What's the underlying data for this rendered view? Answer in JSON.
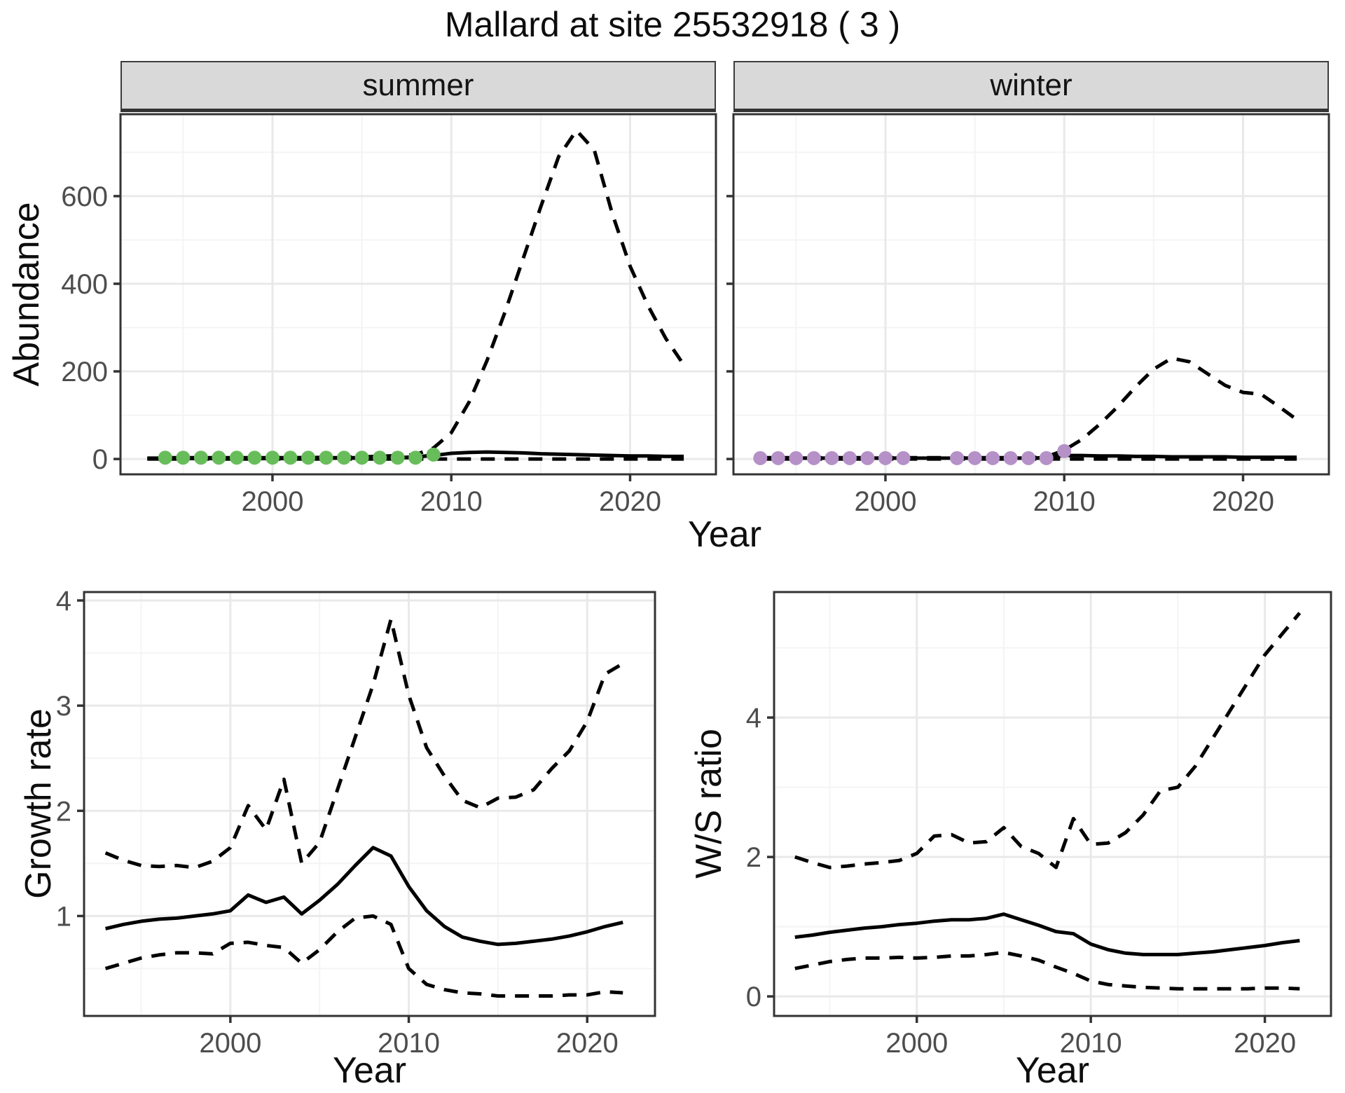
{
  "title": "Mallard at site 25532918 ( 3 )",
  "top_figure": {
    "y_label": "Abundance",
    "x_label": "Year",
    "facets": [
      "summer",
      "winter"
    ]
  },
  "bottom_left": {
    "y_label": "Growth rate",
    "x_label": "Year"
  },
  "bottom_right": {
    "y_label": "W/S ratio",
    "x_label": "Year"
  },
  "colors": {
    "summer_point": "#68bd5b",
    "winter_point": "#b591c8",
    "line": "#000000",
    "strip_bg": "#d9d9d9",
    "grid_major": "#e9e9e9",
    "grid_minor": "#f4f4f4",
    "axis_text": "#4d4d4d",
    "panel_border": "#333333"
  },
  "chart_data": [
    {
      "id": "summer",
      "type": "line",
      "facet_label": "summer",
      "x_range": [
        1991.5,
        2024.8
      ],
      "y_range": [
        -35,
        787
      ],
      "x_ticks": [
        2000,
        2010,
        2020
      ],
      "x_minor": [
        1995,
        2005,
        2015
      ],
      "y_ticks": [
        0,
        200,
        400,
        600
      ],
      "y_minor": [
        100,
        300,
        500,
        700
      ],
      "show_y_tick_labels": true,
      "series": [
        {
          "name": "lower_ci",
          "style": "dashed",
          "x": [
            1993,
            1994,
            1995,
            1996,
            1997,
            1998,
            1999,
            2000,
            2001,
            2002,
            2003,
            2004,
            2005,
            2006,
            2007,
            2008,
            2009,
            2010,
            2011,
            2012,
            2013,
            2014,
            2015,
            2016,
            2017,
            2018,
            2019,
            2020,
            2021,
            2022,
            2023
          ],
          "y": [
            0,
            0,
            0,
            0,
            0,
            0,
            0,
            0,
            0,
            0,
            0,
            0,
            0,
            0,
            0,
            0,
            0,
            0,
            0,
            0,
            0,
            0,
            0,
            0,
            0,
            0,
            0,
            0,
            0,
            0,
            0
          ]
        },
        {
          "name": "upper_ci",
          "style": "dashed",
          "x": [
            1993,
            1994,
            1995,
            1996,
            1997,
            1998,
            1999,
            2000,
            2001,
            2002,
            2003,
            2004,
            2005,
            2006,
            2007,
            2008,
            2009,
            2010,
            2011,
            2012,
            2013,
            2014,
            2015,
            2016,
            2017,
            2018,
            2019,
            2020,
            2021,
            2022,
            2023
          ],
          "y": [
            2,
            2,
            2,
            2,
            2,
            2,
            3,
            3,
            3,
            3,
            4,
            4,
            5,
            6,
            8,
            10,
            25,
            60,
            130,
            225,
            335,
            455,
            575,
            690,
            750,
            705,
            560,
            440,
            350,
            275,
            215
          ]
        },
        {
          "name": "fit",
          "style": "solid",
          "x": [
            1993,
            1994,
            1995,
            1996,
            1997,
            1998,
            1999,
            2000,
            2001,
            2002,
            2003,
            2004,
            2005,
            2006,
            2007,
            2008,
            2009,
            2010,
            2011,
            2012,
            2013,
            2014,
            2015,
            2016,
            2017,
            2018,
            2019,
            2020,
            2021,
            2022,
            2023
          ],
          "y": [
            1,
            1,
            1,
            1,
            1,
            1,
            1,
            1,
            1,
            1,
            2,
            2,
            2,
            3,
            3,
            5,
            8,
            13,
            15,
            16,
            15,
            14,
            12,
            11,
            10,
            9,
            8,
            7,
            7,
            6,
            6
          ]
        },
        {
          "name": "observed",
          "style": "points",
          "color": "#68bd5b",
          "x": [
            1994,
            1995,
            1996,
            1997,
            1998,
            1999,
            2000,
            2001,
            2002,
            2003,
            2004,
            2005,
            2006,
            2007,
            2008,
            2009
          ],
          "y": [
            3,
            3,
            3,
            3,
            3,
            3,
            3,
            3,
            3,
            3,
            3,
            3,
            3,
            3,
            3,
            10
          ]
        }
      ]
    },
    {
      "id": "winter",
      "type": "line",
      "facet_label": "winter",
      "x_range": [
        1991.5,
        2024.8
      ],
      "y_range": [
        -35,
        787
      ],
      "x_ticks": [
        2000,
        2010,
        2020
      ],
      "x_minor": [
        1995,
        2005,
        2015
      ],
      "y_ticks": [
        0,
        200,
        400,
        600
      ],
      "y_minor": [
        100,
        300,
        500,
        700
      ],
      "show_y_tick_labels": false,
      "series": [
        {
          "name": "lower_ci",
          "style": "dashed",
          "x": [
            1993,
            1994,
            1995,
            1996,
            1997,
            1998,
            1999,
            2000,
            2001,
            2002,
            2003,
            2004,
            2005,
            2006,
            2007,
            2008,
            2009,
            2010,
            2011,
            2012,
            2013,
            2014,
            2015,
            2016,
            2017,
            2018,
            2019,
            2020,
            2021,
            2022,
            2023
          ],
          "y": [
            0,
            0,
            0,
            0,
            0,
            0,
            0,
            0,
            0,
            0,
            0,
            0,
            0,
            0,
            0,
            0,
            0,
            0,
            0,
            0,
            0,
            0,
            0,
            0,
            0,
            0,
            0,
            0,
            0,
            0,
            0
          ]
        },
        {
          "name": "upper_ci",
          "style": "dashed",
          "x": [
            1993,
            1994,
            1995,
            1996,
            1997,
            1998,
            1999,
            2000,
            2001,
            2002,
            2003,
            2004,
            2005,
            2006,
            2007,
            2008,
            2009,
            2010,
            2011,
            2012,
            2013,
            2014,
            2015,
            2016,
            2017,
            2018,
            2019,
            2020,
            2021,
            2022,
            2023
          ],
          "y": [
            3,
            3,
            3,
            3,
            3,
            3,
            3,
            3,
            3,
            3,
            3,
            3,
            3,
            3,
            3,
            3,
            5,
            20,
            45,
            80,
            120,
            165,
            205,
            230,
            222,
            195,
            168,
            152,
            148,
            120,
            90
          ]
        },
        {
          "name": "fit",
          "style": "solid",
          "x": [
            1993,
            1994,
            1995,
            1996,
            1997,
            1998,
            1999,
            2000,
            2001,
            2002,
            2003,
            2004,
            2005,
            2006,
            2007,
            2008,
            2009,
            2010,
            2011,
            2012,
            2013,
            2014,
            2015,
            2016,
            2017,
            2018,
            2019,
            2020,
            2021,
            2022,
            2023
          ],
          "y": [
            2,
            2,
            2,
            2,
            2,
            2,
            2,
            2,
            2,
            2,
            2,
            2,
            2,
            2,
            2,
            2,
            3,
            8,
            8,
            7,
            7,
            6,
            6,
            5,
            5,
            5,
            5,
            4,
            4,
            4,
            4
          ]
        },
        {
          "name": "observed",
          "style": "points",
          "color": "#b591c8",
          "x": [
            1993,
            1994,
            1995,
            1996,
            1997,
            1998,
            1999,
            2000,
            2001,
            2004,
            2005,
            2006,
            2007,
            2008,
            2009,
            2010
          ],
          "y": [
            2,
            2,
            2,
            2,
            2,
            2,
            2,
            2,
            2,
            2,
            2,
            2,
            2,
            2,
            2,
            18
          ]
        }
      ]
    },
    {
      "id": "growth",
      "type": "line",
      "facet_label": "",
      "x_range": [
        1991.8,
        2023.8
      ],
      "y_range": [
        0.05,
        4.08
      ],
      "x_ticks": [
        2000,
        2010,
        2020
      ],
      "x_minor": [
        1995,
        2005,
        2015
      ],
      "y_ticks": [
        1,
        2,
        3,
        4
      ],
      "y_minor": [
        0.5,
        1.5,
        2.5,
        3.5
      ],
      "show_y_tick_labels": true,
      "series": [
        {
          "name": "lower_ci",
          "style": "dashed",
          "x": [
            1993,
            1994,
            1995,
            1996,
            1997,
            1998,
            1999,
            2000,
            2001,
            2002,
            2003,
            2004,
            2005,
            2006,
            2007,
            2008,
            2009,
            2010,
            2011,
            2012,
            2013,
            2014,
            2015,
            2016,
            2017,
            2018,
            2019,
            2020,
            2021,
            2022
          ],
          "y": [
            0.5,
            0.55,
            0.6,
            0.63,
            0.65,
            0.65,
            0.64,
            0.74,
            0.75,
            0.72,
            0.7,
            0.55,
            0.68,
            0.85,
            0.98,
            1.0,
            0.92,
            0.5,
            0.35,
            0.3,
            0.27,
            0.26,
            0.24,
            0.24,
            0.24,
            0.24,
            0.25,
            0.25,
            0.28,
            0.27
          ]
        },
        {
          "name": "upper_ci",
          "style": "dashed",
          "x": [
            1993,
            1994,
            1995,
            1996,
            1997,
            1998,
            1999,
            2000,
            2001,
            2002,
            2003,
            2004,
            2005,
            2006,
            2007,
            2008,
            2009,
            2010,
            2011,
            2012,
            2013,
            2014,
            2015,
            2016,
            2017,
            2018,
            2019,
            2020,
            2021,
            2022
          ],
          "y": [
            1.6,
            1.53,
            1.48,
            1.47,
            1.48,
            1.46,
            1.52,
            1.65,
            2.05,
            1.82,
            2.3,
            1.5,
            1.7,
            2.2,
            2.7,
            3.2,
            3.82,
            3.1,
            2.6,
            2.33,
            2.1,
            2.03,
            2.12,
            2.13,
            2.2,
            2.4,
            2.57,
            2.85,
            3.3,
            3.4
          ]
        },
        {
          "name": "fit",
          "style": "solid",
          "x": [
            1993,
            1994,
            1995,
            1996,
            1997,
            1998,
            1999,
            2000,
            2001,
            2002,
            2003,
            2004,
            2005,
            2006,
            2007,
            2008,
            2009,
            2010,
            2011,
            2012,
            2013,
            2014,
            2015,
            2016,
            2017,
            2018,
            2019,
            2020,
            2021,
            2022
          ],
          "y": [
            0.88,
            0.92,
            0.95,
            0.97,
            0.98,
            1.0,
            1.02,
            1.05,
            1.2,
            1.13,
            1.18,
            1.02,
            1.15,
            1.3,
            1.48,
            1.65,
            1.57,
            1.28,
            1.05,
            0.9,
            0.8,
            0.76,
            0.73,
            0.74,
            0.76,
            0.78,
            0.81,
            0.85,
            0.9,
            0.94
          ]
        }
      ]
    },
    {
      "id": "ws",
      "type": "line",
      "facet_label": "",
      "x_range": [
        1991.8,
        2023.8
      ],
      "y_range": [
        -0.28,
        5.8
      ],
      "x_ticks": [
        2000,
        2010,
        2020
      ],
      "x_minor": [
        1995,
        2005,
        2015
      ],
      "y_ticks": [
        0,
        2,
        4
      ],
      "y_minor": [
        1,
        3,
        5
      ],
      "show_y_tick_labels": true,
      "series": [
        {
          "name": "lower_ci",
          "style": "dashed",
          "x": [
            1993,
            1994,
            1995,
            1996,
            1997,
            1998,
            1999,
            2000,
            2001,
            2002,
            2003,
            2004,
            2005,
            2006,
            2007,
            2008,
            2009,
            2010,
            2011,
            2012,
            2013,
            2014,
            2015,
            2016,
            2017,
            2018,
            2019,
            2020,
            2021,
            2022
          ],
          "y": [
            0.4,
            0.45,
            0.5,
            0.53,
            0.55,
            0.55,
            0.56,
            0.55,
            0.56,
            0.58,
            0.58,
            0.6,
            0.63,
            0.58,
            0.52,
            0.42,
            0.33,
            0.22,
            0.17,
            0.15,
            0.13,
            0.12,
            0.11,
            0.11,
            0.11,
            0.11,
            0.11,
            0.12,
            0.12,
            0.11
          ]
        },
        {
          "name": "upper_ci",
          "style": "dashed",
          "x": [
            1993,
            1994,
            1995,
            1996,
            1997,
            1998,
            1999,
            2000,
            2001,
            2002,
            2003,
            2004,
            2005,
            2006,
            2007,
            2008,
            2009,
            2010,
            2011,
            2012,
            2013,
            2014,
            2015,
            2016,
            2017,
            2018,
            2019,
            2020,
            2021,
            2022
          ],
          "y": [
            2.0,
            1.92,
            1.85,
            1.87,
            1.9,
            1.92,
            1.95,
            2.05,
            2.3,
            2.32,
            2.2,
            2.22,
            2.42,
            2.15,
            2.05,
            1.85,
            2.55,
            2.18,
            2.2,
            2.35,
            2.6,
            2.95,
            3.0,
            3.3,
            3.7,
            4.1,
            4.5,
            4.9,
            5.2,
            5.5
          ]
        },
        {
          "name": "fit",
          "style": "solid",
          "x": [
            1993,
            1994,
            1995,
            1996,
            1997,
            1998,
            1999,
            2000,
            2001,
            2002,
            2003,
            2004,
            2005,
            2006,
            2007,
            2008,
            2009,
            2010,
            2011,
            2012,
            2013,
            2014,
            2015,
            2016,
            2017,
            2018,
            2019,
            2020,
            2021,
            2022
          ],
          "y": [
            0.85,
            0.88,
            0.92,
            0.95,
            0.98,
            1.0,
            1.03,
            1.05,
            1.08,
            1.1,
            1.1,
            1.12,
            1.18,
            1.1,
            1.02,
            0.93,
            0.9,
            0.75,
            0.67,
            0.62,
            0.6,
            0.6,
            0.6,
            0.62,
            0.64,
            0.67,
            0.7,
            0.73,
            0.77,
            0.8
          ]
        }
      ]
    }
  ]
}
